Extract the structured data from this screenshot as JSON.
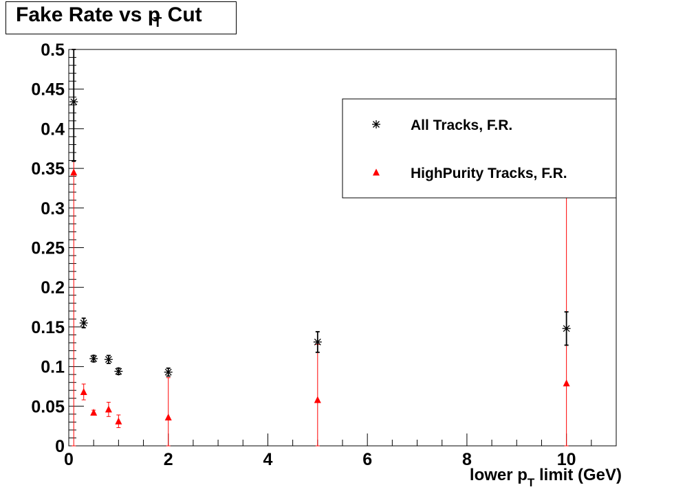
{
  "chart_data": {
    "type": "scatter",
    "title": {
      "main": "Fake Rate vs p",
      "sub": "T",
      "tail": " Cut"
    },
    "xlabel": {
      "main": "lower p",
      "sub": "T",
      "tail": " limit (GeV)"
    },
    "ylabel": "",
    "xlim": [
      0,
      11
    ],
    "ylim": [
      0,
      0.5
    ],
    "x_ticks": [
      0,
      2,
      4,
      6,
      8,
      10
    ],
    "y_ticks": [
      0,
      0.05,
      0.1,
      0.15,
      0.2,
      0.25,
      0.3,
      0.35,
      0.4,
      0.45,
      0.5
    ],
    "y_tick_labels": [
      "0",
      "0.05",
      "0.1",
      "0.15",
      "0.2",
      "0.25",
      "0.3",
      "0.35",
      "0.4",
      "0.45",
      "0.5"
    ],
    "x_tick_labels": [
      "0",
      "2",
      "4",
      "6",
      "8",
      "10"
    ],
    "grid": false,
    "legend_position": "top-right",
    "series": [
      {
        "name": "All Tracks, F.R.",
        "marker": "star",
        "color": "#000000",
        "points": [
          {
            "x": 0.1,
            "y": 0.434,
            "err": 0.075
          },
          {
            "x": 0.3,
            "y": 0.155,
            "err": 0.006
          },
          {
            "x": 0.5,
            "y": 0.11,
            "err": 0.004
          },
          {
            "x": 0.8,
            "y": 0.109,
            "err": 0.005
          },
          {
            "x": 1.0,
            "y": 0.094,
            "err": 0.004
          },
          {
            "x": 2.0,
            "y": 0.093,
            "err": 0.005
          },
          {
            "x": 5.0,
            "y": 0.131,
            "err": 0.013
          },
          {
            "x": 10.0,
            "y": 0.148,
            "err": 0.021
          }
        ]
      },
      {
        "name": "HighPurity Tracks, F.R.",
        "marker": "triangle",
        "color": "#ff0000",
        "points": [
          {
            "x": 0.1,
            "y": 0.345,
            "err": 0.345
          },
          {
            "x": 0.3,
            "y": 0.068,
            "err": 0.01
          },
          {
            "x": 0.5,
            "y": 0.042,
            "err": 0.003
          },
          {
            "x": 0.8,
            "y": 0.046,
            "err": 0.009
          },
          {
            "x": 1.0,
            "y": 0.031,
            "err": 0.008
          },
          {
            "x": 2.0,
            "y": 0.036,
            "err": 0.05
          },
          {
            "x": 5.0,
            "y": 0.058,
            "err": 0.07
          },
          {
            "x": 10.0,
            "y": 0.079,
            "err": 0.318
          }
        ]
      }
    ]
  }
}
